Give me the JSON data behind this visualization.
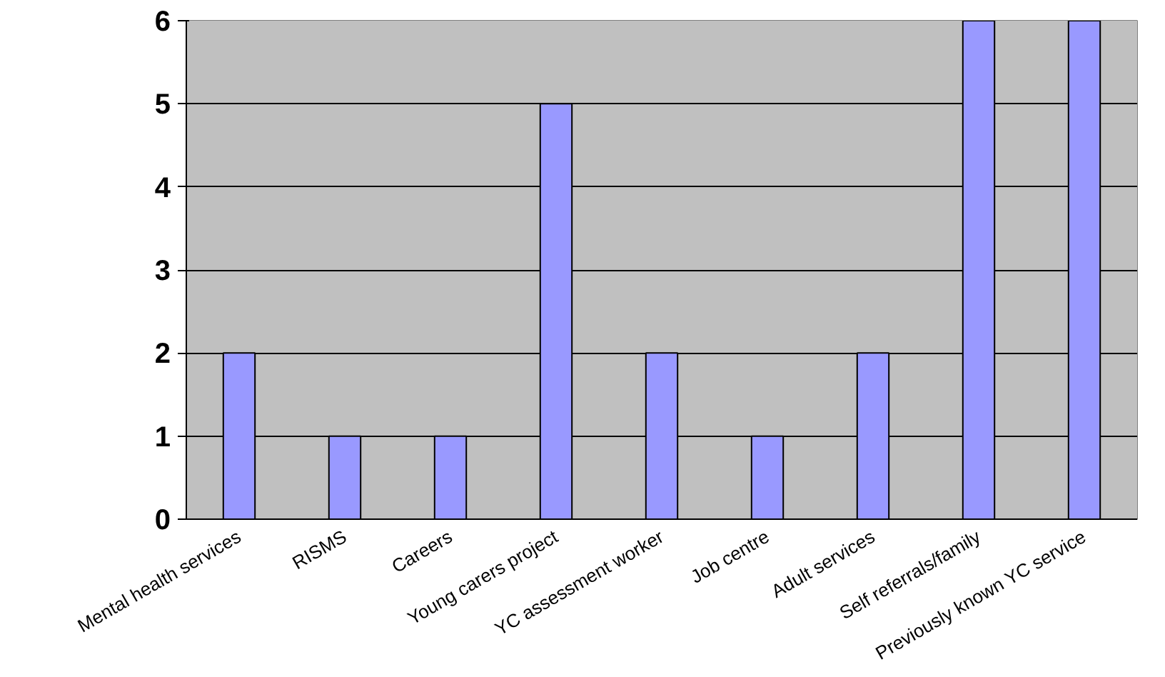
{
  "chart_data": {
    "type": "bar",
    "categories": [
      "Mental health services",
      "RISMS",
      "Careers",
      "Young carers project",
      "YC assessment worker",
      "Job centre",
      "Adult services",
      "Self referrals/family",
      "Previously known YC service"
    ],
    "values": [
      2,
      1,
      1,
      5,
      2,
      1,
      2,
      6,
      6
    ],
    "color": "#9999ff",
    "ylim": [
      0,
      6
    ],
    "yticks": [
      0,
      1,
      2,
      3,
      4,
      5,
      6
    ],
    "grid": "y"
  }
}
